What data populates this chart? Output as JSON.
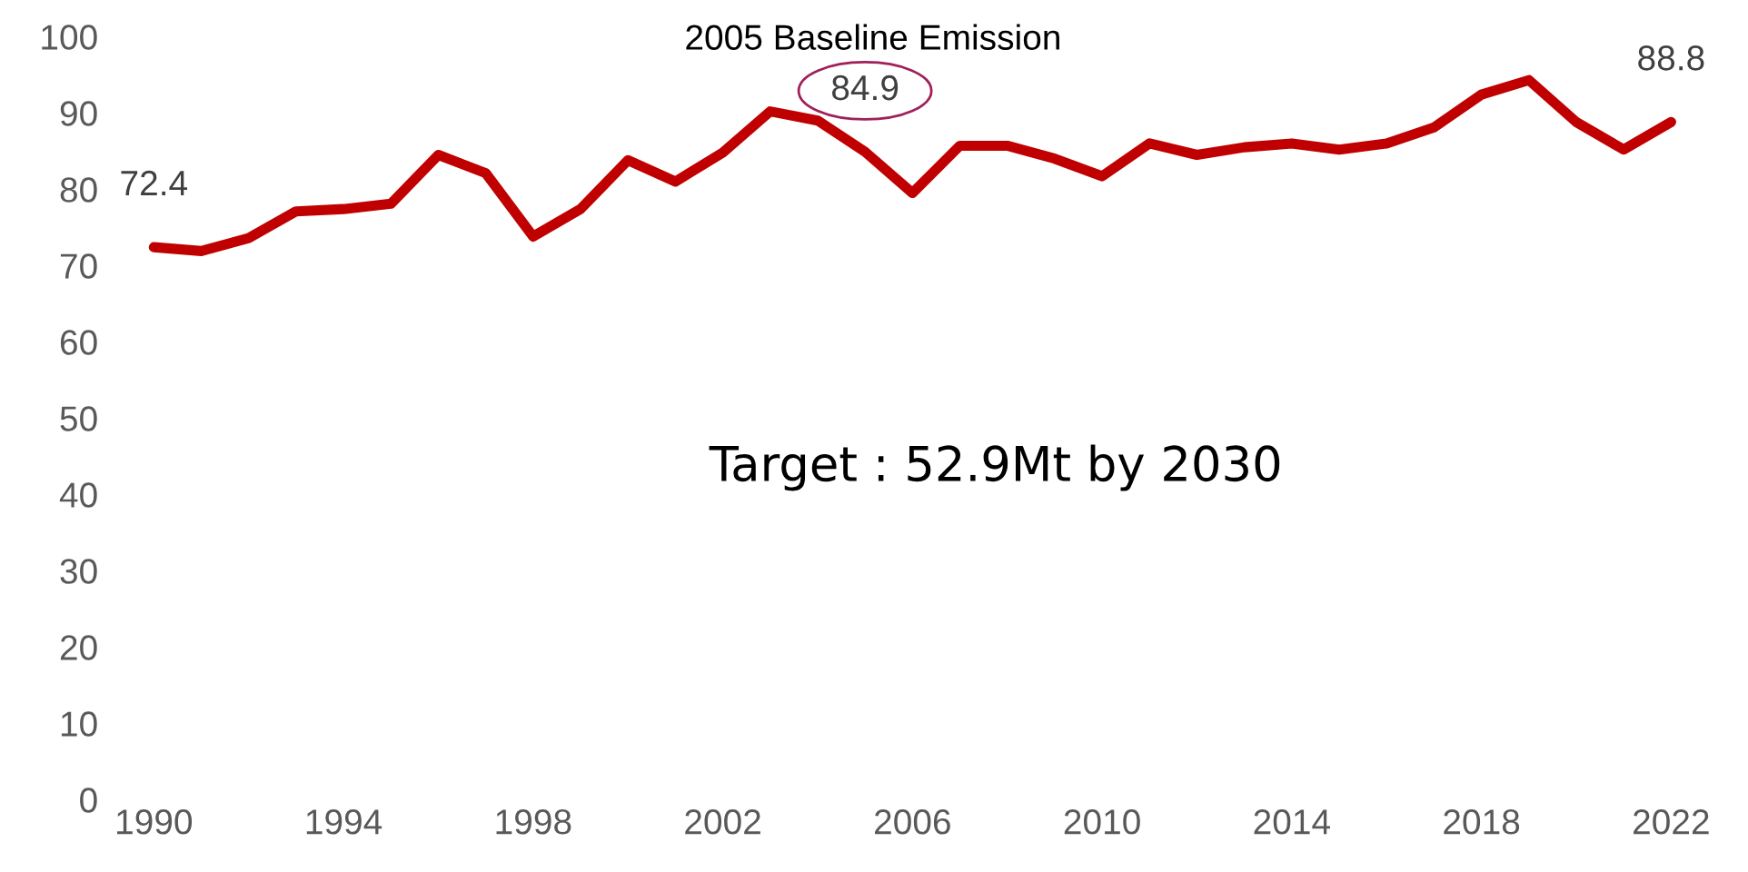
{
  "chart_data": {
    "type": "line",
    "x": [
      1990,
      1991,
      1992,
      1993,
      1994,
      1995,
      1996,
      1997,
      1998,
      1999,
      2000,
      2001,
      2002,
      2003,
      2004,
      2005,
      2006,
      2007,
      2008,
      2009,
      2010,
      2011,
      2012,
      2013,
      2014,
      2015,
      2016,
      2017,
      2018,
      2019,
      2020,
      2021,
      2022
    ],
    "series": [
      {
        "color": "#c00000",
        "values": [
          72.4,
          71.9,
          73.6,
          77.1,
          77.4,
          78.1,
          84.5,
          82.1,
          73.8,
          77.4,
          83.8,
          81.0,
          84.8,
          90.2,
          89.0,
          84.9,
          79.5,
          85.7,
          85.7,
          84.0,
          81.7,
          86.0,
          84.5,
          85.5,
          86.0,
          85.2,
          86.0,
          88.1,
          92.4,
          94.3,
          88.8,
          85.2,
          88.8
        ],
        "value_labels": [
          "72.4",
          null,
          null,
          null,
          null,
          null,
          null,
          null,
          null,
          null,
          null,
          null,
          null,
          null,
          null,
          "84.9",
          null,
          null,
          null,
          null,
          null,
          null,
          null,
          null,
          null,
          null,
          null,
          null,
          null,
          null,
          null,
          null,
          "88.8"
        ]
      }
    ],
    "xlim": [
      1990,
      2022
    ],
    "xticks": [
      1990,
      1994,
      1998,
      2002,
      2006,
      2010,
      2014,
      2018,
      2022
    ],
    "ylim": [
      0,
      100
    ],
    "yticks": [
      0,
      10,
      20,
      30,
      40,
      50,
      60,
      70,
      80,
      90,
      100
    ],
    "grid": false,
    "legend": false,
    "marker": "none",
    "line_style": "solid",
    "annotations": [
      "2005 Baseline Emission",
      "Target : 52.9Mt by 2030"
    ]
  }
}
